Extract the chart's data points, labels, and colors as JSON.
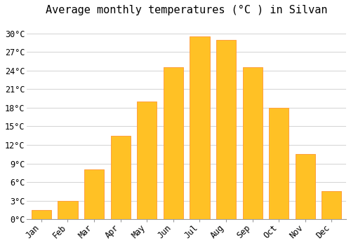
{
  "title": "Average monthly temperatures (°C ) in Silvan",
  "months": [
    "Jan",
    "Feb",
    "Mar",
    "Apr",
    "May",
    "Jun",
    "Jul",
    "Aug",
    "Sep",
    "Oct",
    "Nov",
    "Dec"
  ],
  "values": [
    1.5,
    3.0,
    8.0,
    13.5,
    19.0,
    24.5,
    29.5,
    29.0,
    24.5,
    18.0,
    10.5,
    4.5
  ],
  "bar_color": "#FFC125",
  "bar_edge_color": "#FFA040",
  "background_color": "#FFFFFF",
  "grid_color": "#CCCCCC",
  "yticks": [
    0,
    3,
    6,
    9,
    12,
    15,
    18,
    21,
    24,
    27,
    30
  ],
  "ylim": [
    0,
    32
  ],
  "title_fontsize": 11,
  "tick_fontsize": 8.5,
  "font_family": "monospace"
}
